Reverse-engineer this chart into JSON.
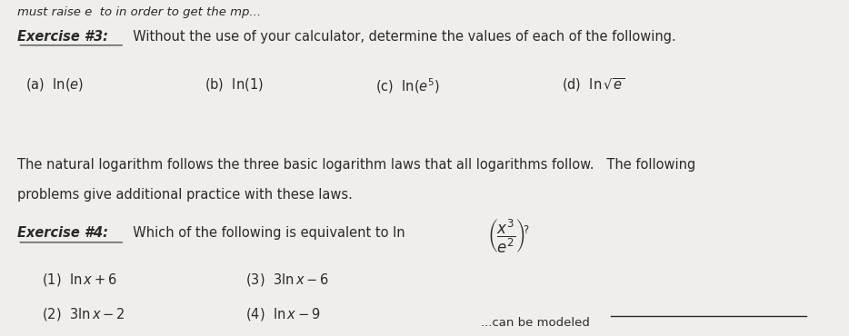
{
  "bg_color": "#f0eeea",
  "text_color": "#2a2a2a",
  "figsize": [
    9.34,
    3.7
  ],
  "dpi": 100,
  "top_text": "must raise e  to in order to get the mp...",
  "ex3_label": "Exercise #3:",
  "ex3_desc": "  Without the use of your calculator, determine the values of each of the following.",
  "middle_text_1": "The natural logarithm follows the three basic logarithm laws that all logarithms follow.   The following",
  "middle_text_2": "problems give additional practice with these laws.",
  "ex4_label": "Exercise #4:",
  "ex4_desc": "  Which of the following is equivalent to ln",
  "choices_col1_1": "(1)  ln x + 6",
  "choices_col1_2": "(2)  3 ln x − 2",
  "choices_col2_1": "(3)  3 ln x − 6",
  "choices_col2_2": "(4)  ln x − 9",
  "bottom_line": true
}
